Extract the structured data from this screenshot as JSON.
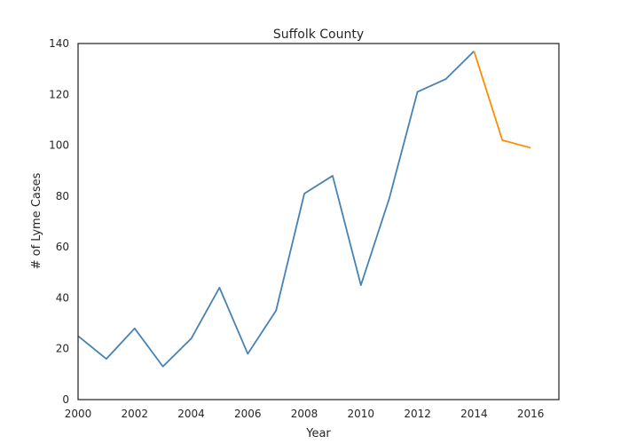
{
  "chart_data": {
    "type": "line",
    "title": "Suffolk County",
    "xlabel": "Year",
    "ylabel": "# of Lyme Cases",
    "xlim": [
      2000,
      2017
    ],
    "ylim": [
      0,
      140
    ],
    "xticks": [
      2000,
      2002,
      2004,
      2006,
      2008,
      2010,
      2012,
      2014,
      2016
    ],
    "yticks": [
      0,
      20,
      40,
      60,
      80,
      100,
      120,
      140
    ],
    "grid": false,
    "series": [
      {
        "color": "#4682b4",
        "x": [
          2000,
          2001,
          2002,
          2003,
          2004,
          2005,
          2006,
          2007,
          2008,
          2009,
          2010,
          2011,
          2012,
          2013,
          2014
        ],
        "values": [
          25,
          16,
          28,
          13,
          24,
          44,
          18,
          35,
          81,
          88,
          45,
          79,
          121,
          126,
          137
        ]
      },
      {
        "color": "#ff8c00",
        "x": [
          2014,
          2015,
          2016
        ],
        "values": [
          137,
          102,
          99
        ]
      }
    ]
  }
}
